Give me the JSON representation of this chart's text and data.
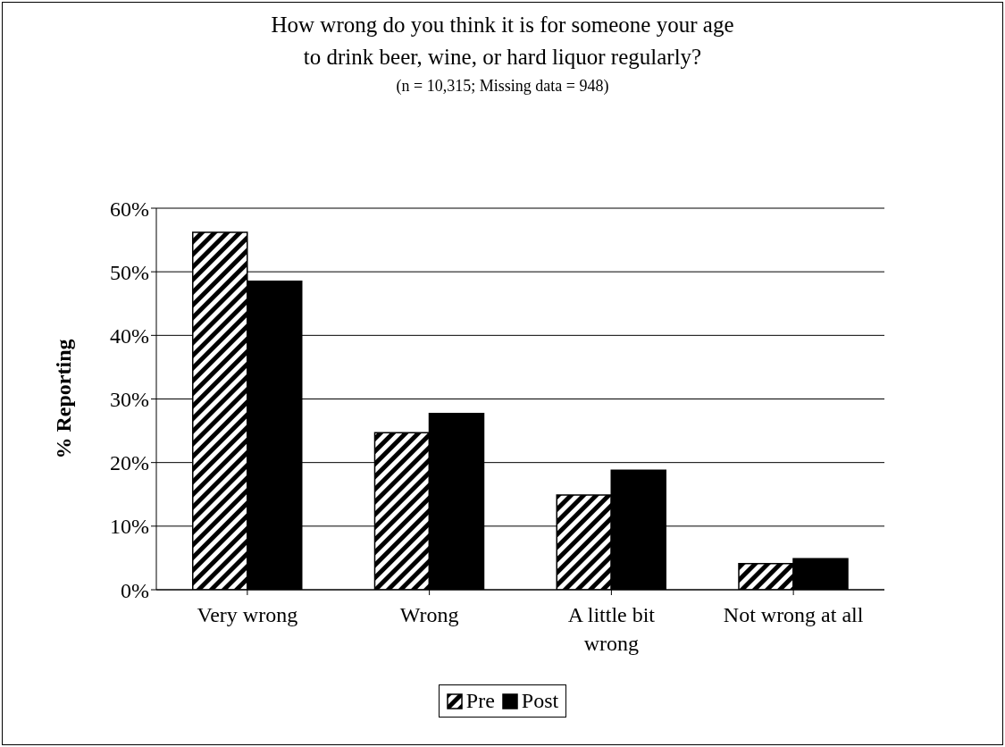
{
  "chart_data": {
    "type": "bar",
    "title": "How wrong do you think it is for someone your age\nto drink beer, wine, or hard liquor regularly?",
    "subtitle": "(n = 10,315; Missing data = 948)",
    "ylabel": "% Reporting",
    "categories": [
      "Very wrong",
      "Wrong",
      "A little bit wrong",
      "Not wrong at all"
    ],
    "series": [
      {
        "name": "Pre",
        "color": "#000000",
        "values": [
          56.2,
          24.7,
          14.9,
          4.1
        ]
      },
      {
        "name": "Post",
        "color": "#000000",
        "values": [
          48.5,
          27.7,
          18.8,
          4.9
        ]
      }
    ],
    "ylim": [
      0,
      60
    ],
    "yticks": [
      {
        "value": 0,
        "label": "0%"
      },
      {
        "value": 10,
        "label": "10%"
      },
      {
        "value": 20,
        "label": "20%"
      },
      {
        "value": 30,
        "label": "30%"
      },
      {
        "value": 40,
        "label": "40%"
      },
      {
        "value": 50,
        "label": "50%"
      },
      {
        "value": 60,
        "label": "60%"
      }
    ],
    "grid": "y",
    "legend": "bottom"
  }
}
